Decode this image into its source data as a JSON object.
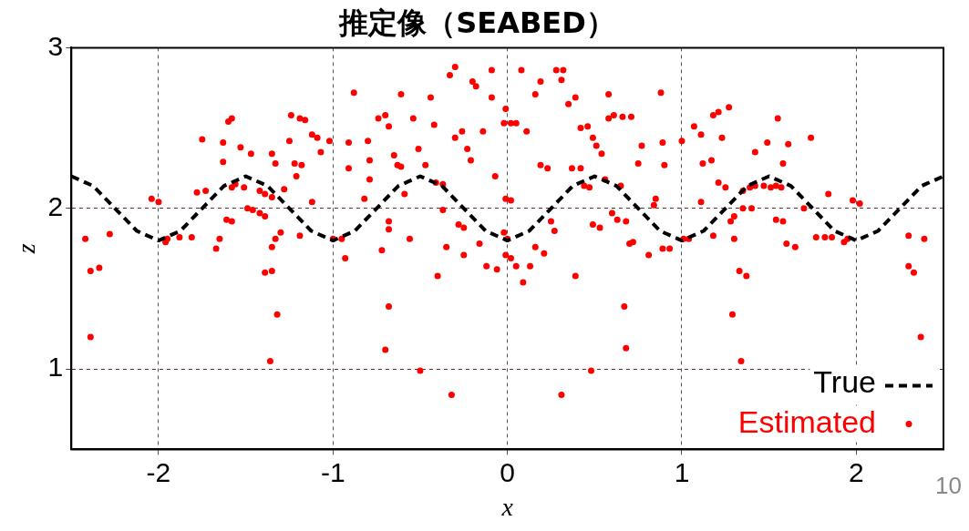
{
  "chart_data": {
    "type": "scatter",
    "title": "推定像（SEABED）",
    "xlabel": "x",
    "ylabel": "z",
    "xlim": [
      -2.5,
      2.5
    ],
    "ylim": [
      0.5,
      3
    ],
    "xticks": [
      -2,
      -1,
      0,
      1,
      2
    ],
    "yticks": [
      1,
      2,
      3
    ],
    "grid": true,
    "legend": "bottom right",
    "annotations": [
      "10"
    ],
    "series": [
      {
        "name": "True",
        "type": "line",
        "color": "#000000",
        "line_style": "dashed",
        "marker": "none",
        "x": [
          -2.5,
          -2.375,
          -2.25,
          -2.125,
          -2,
          -1.875,
          -1.75,
          -1.625,
          -1.5,
          -1.375,
          -1.25,
          -1.125,
          -1,
          -0.875,
          -0.75,
          -0.625,
          -0.5,
          -0.375,
          -0.25,
          -0.125,
          0,
          0.125,
          0.25,
          0.375,
          0.5,
          0.625,
          0.75,
          0.875,
          1,
          1.125,
          1.25,
          1.375,
          1.5,
          1.625,
          1.75,
          1.875,
          2,
          2.125,
          2.25,
          2.375,
          2.5
        ],
        "values": [
          2.2,
          2.14,
          2,
          1.86,
          1.8,
          1.86,
          2,
          2.14,
          2.2,
          2.14,
          2,
          1.86,
          1.8,
          1.86,
          2,
          2.14,
          2.2,
          2.14,
          2,
          1.86,
          1.8,
          1.86,
          2,
          2.14,
          2.2,
          2.14,
          2,
          1.86,
          1.8,
          1.86,
          2,
          2.14,
          2.2,
          2.14,
          2,
          1.86,
          1.8,
          1.86,
          2,
          2.14,
          2.2
        ]
      },
      {
        "name": "Estimated",
        "type": "scatter",
        "color": "#ff0000",
        "marker": "circle",
        "x": [
          -2.42,
          -2.39,
          -2.34,
          -2.39,
          -2.28,
          -2.04,
          -2.0,
          -1.96,
          -1.95,
          -1.88,
          -1.81,
          -1.75,
          -1.78,
          -1.73,
          -1.67,
          -1.65,
          -1.63,
          -1.63,
          -1.6,
          -1.58,
          -1.58,
          -1.56,
          -1.61,
          -1.58,
          -1.53,
          -1.47,
          -1.51,
          -1.49,
          -1.46,
          -1.42,
          -1.39,
          -1.35,
          -1.42,
          -1.39,
          -1.35,
          -1.33,
          -1.33,
          -1.35,
          -1.39,
          -1.35,
          -1.36,
          -1.32,
          -1.3,
          -1.28,
          -1.24,
          -1.19,
          -1.16,
          -1.25,
          -1.22,
          -1.18,
          -1.19,
          -1.21,
          -1.12,
          -1.09,
          -1.12,
          -1.07,
          -1.02,
          -1.0,
          -0.95,
          -0.93,
          -0.91,
          -0.91,
          -0.88,
          -0.82,
          -0.8,
          -0.79,
          -0.79,
          -0.72,
          -0.74,
          -0.7,
          -0.68,
          -0.68,
          -0.68,
          -0.68,
          -0.7,
          -0.65,
          -0.63,
          -0.61,
          -0.61,
          -0.59,
          -0.56,
          -0.54,
          -0.51,
          -0.5,
          -0.47,
          -0.44,
          -0.42,
          -0.41,
          -0.37,
          -0.4,
          -0.37,
          -0.35,
          -0.32,
          -0.3,
          -0.33,
          -0.3,
          -0.28,
          -0.25,
          -0.26,
          -0.25,
          -0.23,
          -0.21,
          -0.2,
          -0.18,
          -0.16,
          -0.12,
          -0.14,
          -0.09,
          -0.09,
          -0.07,
          -0.06,
          -0.02,
          0.02,
          0.05,
          -0.01,
          -0.01,
          0.02,
          -0.02,
          0,
          -0.01,
          0.02,
          0.05,
          0.08,
          0.09,
          0.11,
          0.13,
          0.16,
          0.16,
          0.19,
          0.19,
          0.23,
          0.21,
          0.25,
          0.27,
          0.28,
          0.32,
          0.31,
          0.31,
          0.35,
          0.39,
          0.37,
          0.42,
          0.39,
          0.42,
          0.46,
          0.44,
          0.47,
          0.48,
          0.49,
          0.53,
          0.49,
          0.51,
          0.54,
          0.56,
          0.58,
          0.61,
          0.66,
          0.71,
          0.58,
          0.6,
          0.63,
          0.65,
          0.67,
          0.68,
          0.68,
          0.7,
          0.72,
          0.75,
          0.77,
          0.81,
          0.85,
          0.84,
          0.88,
          0.89,
          0.93,
          0.89,
          0.9,
          1.0,
          1.01,
          1.04,
          1.07,
          1.11,
          1.11,
          1.12,
          1.17,
          1.18,
          1.18,
          1.21,
          1.27,
          1.21,
          1.25,
          1.23,
          1.28,
          1.3,
          1.3,
          1.29,
          1.33,
          1.37,
          1.34,
          1.35,
          1.4,
          1.35,
          1.39,
          1.42,
          1.47,
          1.42,
          1.49,
          1.51,
          1.54,
          1.57,
          1.54,
          1.58,
          1.55,
          1.58,
          1.61,
          1.6,
          1.65,
          1.7,
          1.74,
          1.77,
          1.82,
          1.86,
          1.84,
          1.93,
          1.95,
          1.98,
          2.02,
          2.3,
          2.39,
          2.3,
          2.33,
          2.37
        ],
        "values": [
          1.81,
          1.61,
          1.63,
          1.2,
          1.84,
          2.06,
          2.04,
          1.79,
          1.81,
          1.82,
          1.82,
          2.43,
          2.1,
          2.11,
          1.75,
          1.81,
          2.29,
          2.41,
          2.54,
          2.56,
          2.13,
          2.15,
          1.93,
          1.92,
          2.38,
          2.34,
          2.13,
          2.0,
          1.99,
          2.11,
          2.09,
          2.07,
          1.97,
          1.95,
          2.34,
          2.28,
          1.81,
          1.76,
          1.6,
          1.61,
          1.05,
          1.34,
          1.85,
          2.12,
          2.58,
          2.56,
          2.55,
          2.42,
          2.28,
          2.27,
          1.83,
          2.2,
          2.46,
          2.44,
          2.04,
          2.35,
          2.42,
          1.81,
          1.81,
          1.69,
          2.41,
          2.25,
          2.72,
          2.06,
          2.42,
          2.3,
          2.18,
          1.74,
          2.56,
          2.58,
          2.51,
          1.92,
          1.87,
          1.39,
          1.12,
          2.33,
          2.27,
          2.26,
          2.71,
          2.09,
          1.81,
          2.56,
          2.37,
          0.99,
          2.27,
          2.69,
          2.52,
          2.16,
          2.15,
          1.58,
          1.99,
          1.76,
          0.84,
          2.44,
          2.83,
          2.88,
          1.9,
          1.88,
          2.48,
          1.71,
          2.37,
          2.3,
          2.79,
          2.76,
          1.78,
          1.64,
          2.48,
          2.69,
          2.86,
          2.2,
          1.62,
          2.53,
          2.53,
          2.53,
          2.62,
          2.06,
          2.05,
          1.85,
          1.81,
          1.71,
          1.69,
          1.64,
          2.86,
          1.54,
          2.48,
          1.64,
          1.76,
          2.71,
          2.79,
          2.27,
          2.25,
          1.72,
          1.92,
          1.86,
          2.86,
          2.86,
          2.8,
          0.84,
          2.65,
          2.69,
          2.25,
          2.25,
          1.58,
          2.5,
          2.51,
          2.14,
          2.13,
          0.99,
          1.9,
          1.88,
          2.44,
          2.39,
          2.34,
          2.18,
          2.56,
          2.58,
          2.57,
          2.57,
          2.71,
          1.97,
          1.93,
          2.14,
          1.39,
          1.13,
          1.92,
          1.78,
          1.79,
          2.28,
          2.39,
          1.71,
          2.06,
          2.02,
          2.72,
          1.75,
          1.75,
          2.41,
          2.27,
          2.42,
          1.81,
          1.81,
          2.51,
          2.46,
          2.04,
          2.28,
          2.3,
          1.83,
          2.58,
          2.6,
          2.63,
          2.16,
          2.13,
          2.44,
          1.92,
          1.95,
          1.81,
          1.34,
          1.61,
          1.58,
          1.05,
          2.0,
          2.0,
          2.11,
          2.13,
          2.14,
          2.14,
          2.35,
          2.41,
          2.13,
          2.14,
          2.13,
          1.93,
          1.92,
          2.56,
          2.28,
          2.4,
          1.78,
          1.76,
          2.0,
          2.44,
          1.82,
          1.82,
          1.82,
          2.09,
          1.79,
          1.81,
          2.05,
          2.03,
          1.83,
          1.81,
          1.64,
          1.6,
          1.2
        ]
      }
    ]
  }
}
